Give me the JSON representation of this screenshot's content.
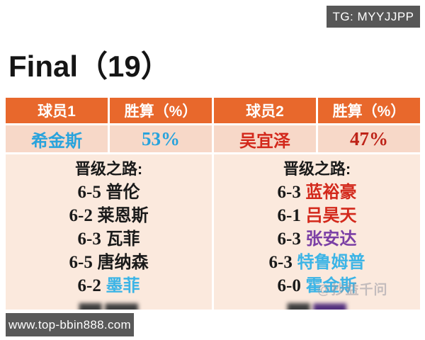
{
  "badge": {
    "label": "TG: MYYJJPP"
  },
  "title": "Final（19）",
  "table": {
    "headers": [
      "球员1",
      "胜算（%）",
      "球员2",
      "胜算（%）"
    ],
    "players": [
      {
        "name": "希金斯",
        "win_pct": "53%"
      },
      {
        "name": "吴宜泽",
        "win_pct": "47%"
      }
    ],
    "path_label": "晋级之路:",
    "paths": [
      {
        "matches": [
          {
            "score": "6-5",
            "opponent": "普伦",
            "color": "black"
          },
          {
            "score": "6-2",
            "opponent": "莱恩斯",
            "color": "black"
          },
          {
            "score": "6-3",
            "opponent": "瓦菲",
            "color": "black"
          },
          {
            "score": "6-5",
            "opponent": "唐纳森",
            "color": "black"
          },
          {
            "score": "6-2",
            "opponent": "墨菲",
            "color": "sky"
          },
          {
            "score": "▇▇",
            "opponent": "▇▇▇",
            "color": "censored",
            "censored": true
          }
        ]
      },
      {
        "matches": [
          {
            "score": "6-3",
            "opponent": "蓝裕豪",
            "color": "red"
          },
          {
            "score": "6-1",
            "opponent": "吕昊天",
            "color": "red"
          },
          {
            "score": "6-3",
            "opponent": "张安达",
            "color": "purple"
          },
          {
            "score": "6-3",
            "opponent": "特鲁姆普",
            "color": "sky"
          },
          {
            "score": "6-0",
            "opponent": "霍金斯",
            "color": "sky"
          },
          {
            "score": "▇▇",
            "opponent": "▇▇▇",
            "color": "censored_purple",
            "censored": true
          }
        ]
      }
    ]
  },
  "watermark": "@抄益千问",
  "website": "www.top-bbin888.com",
  "colors": {
    "header_bg": "#E8682C",
    "row_bg": "#F7D8C8",
    "path_bg": "#FBE9DD",
    "blue": "#29A3DC",
    "sky": "#3CB4E6",
    "red": "#D3281B",
    "dark_red": "#BE2318",
    "purple": "#7B3FA5",
    "black": "#1A1A1A",
    "censored": "#3F3F3F",
    "censored_purple": "#53307E",
    "badge_bg": "#575757",
    "url_bg": "#595959"
  }
}
